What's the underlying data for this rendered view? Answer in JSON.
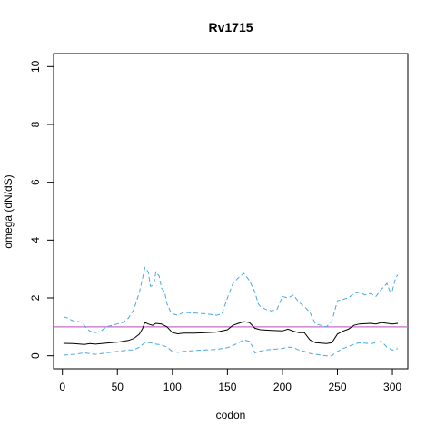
{
  "chart_data": {
    "type": "line",
    "title": "Rv1715",
    "xlabel": "codon",
    "ylabel": "omega (dN/dS)",
    "xlim": [
      -8,
      314
    ],
    "ylim": [
      -0.45,
      10.45
    ],
    "x_ticks": [
      0,
      50,
      100,
      150,
      200,
      250,
      300
    ],
    "y_ticks": [
      0,
      2,
      4,
      6,
      8,
      10
    ],
    "reference_line": {
      "y": 1,
      "color": "#c86ec8"
    },
    "grid": false,
    "series": [
      {
        "role": "estimate",
        "color": "#000000",
        "style": "solid",
        "points": [
          [
            1,
            0.43
          ],
          [
            10,
            0.42
          ],
          [
            20,
            0.39
          ],
          [
            25,
            0.42
          ],
          [
            30,
            0.4
          ],
          [
            40,
            0.44
          ],
          [
            50,
            0.47
          ],
          [
            60,
            0.53
          ],
          [
            65,
            0.6
          ],
          [
            70,
            0.75
          ],
          [
            73,
            0.95
          ],
          [
            75,
            1.15
          ],
          [
            78,
            1.1
          ],
          [
            82,
            1.05
          ],
          [
            85,
            1.12
          ],
          [
            90,
            1.1
          ],
          [
            95,
            1.0
          ],
          [
            100,
            0.8
          ],
          [
            105,
            0.76
          ],
          [
            110,
            0.78
          ],
          [
            120,
            0.78
          ],
          [
            130,
            0.8
          ],
          [
            140,
            0.82
          ],
          [
            150,
            0.9
          ],
          [
            155,
            1.05
          ],
          [
            160,
            1.12
          ],
          [
            165,
            1.18
          ],
          [
            170,
            1.15
          ],
          [
            175,
            0.95
          ],
          [
            180,
            0.9
          ],
          [
            190,
            0.88
          ],
          [
            200,
            0.86
          ],
          [
            205,
            0.92
          ],
          [
            210,
            0.85
          ],
          [
            215,
            0.8
          ],
          [
            220,
            0.8
          ],
          [
            225,
            0.55
          ],
          [
            230,
            0.45
          ],
          [
            240,
            0.42
          ],
          [
            245,
            0.45
          ],
          [
            250,
            0.75
          ],
          [
            255,
            0.85
          ],
          [
            260,
            0.92
          ],
          [
            265,
            1.05
          ],
          [
            270,
            1.1
          ],
          [
            280,
            1.12
          ],
          [
            285,
            1.1
          ],
          [
            290,
            1.15
          ],
          [
            300,
            1.1
          ],
          [
            305,
            1.12
          ]
        ]
      },
      {
        "role": "upper",
        "color": "#4aa8e0",
        "style": "dashed",
        "points": [
          [
            1,
            1.35
          ],
          [
            5,
            1.3
          ],
          [
            10,
            1.2
          ],
          [
            15,
            1.18
          ],
          [
            18,
            1.15
          ],
          [
            20,
            1.05
          ],
          [
            22,
            0.95
          ],
          [
            25,
            0.85
          ],
          [
            30,
            0.8
          ],
          [
            35,
            0.85
          ],
          [
            40,
            1.0
          ],
          [
            45,
            1.05
          ],
          [
            50,
            1.1
          ],
          [
            55,
            1.15
          ],
          [
            60,
            1.3
          ],
          [
            65,
            1.6
          ],
          [
            70,
            2.2
          ],
          [
            73,
            2.7
          ],
          [
            75,
            3.05
          ],
          [
            78,
            2.9
          ],
          [
            80,
            2.4
          ],
          [
            83,
            2.45
          ],
          [
            85,
            2.9
          ],
          [
            88,
            2.75
          ],
          [
            90,
            2.35
          ],
          [
            93,
            2.2
          ],
          [
            95,
            1.8
          ],
          [
            98,
            1.55
          ],
          [
            100,
            1.45
          ],
          [
            105,
            1.4
          ],
          [
            110,
            1.5
          ],
          [
            120,
            1.48
          ],
          [
            130,
            1.45
          ],
          [
            140,
            1.4
          ],
          [
            145,
            1.45
          ],
          [
            150,
            2.0
          ],
          [
            155,
            2.5
          ],
          [
            160,
            2.7
          ],
          [
            165,
            2.85
          ],
          [
            170,
            2.6
          ],
          [
            175,
            2.2
          ],
          [
            178,
            1.8
          ],
          [
            180,
            1.7
          ],
          [
            185,
            1.6
          ],
          [
            190,
            1.55
          ],
          [
            195,
            1.6
          ],
          [
            200,
            2.05
          ],
          [
            205,
            2.0
          ],
          [
            210,
            2.1
          ],
          [
            215,
            1.85
          ],
          [
            220,
            1.7
          ],
          [
            225,
            1.5
          ],
          [
            230,
            1.1
          ],
          [
            235,
            1.05
          ],
          [
            240,
            1.0
          ],
          [
            245,
            1.2
          ],
          [
            250,
            1.9
          ],
          [
            255,
            1.95
          ],
          [
            260,
            2.0
          ],
          [
            265,
            2.15
          ],
          [
            270,
            2.2
          ],
          [
            275,
            2.1
          ],
          [
            280,
            2.15
          ],
          [
            285,
            2.05
          ],
          [
            290,
            2.3
          ],
          [
            295,
            2.5
          ],
          [
            298,
            2.2
          ],
          [
            300,
            2.25
          ],
          [
            303,
            2.7
          ],
          [
            305,
            2.8
          ]
        ]
      },
      {
        "role": "lower",
        "color": "#4aa8e0",
        "style": "dashed",
        "points": [
          [
            1,
            0.02
          ],
          [
            10,
            0.05
          ],
          [
            20,
            0.1
          ],
          [
            30,
            0.05
          ],
          [
            40,
            0.1
          ],
          [
            50,
            0.15
          ],
          [
            60,
            0.2
          ],
          [
            65,
            0.2
          ],
          [
            70,
            0.3
          ],
          [
            75,
            0.45
          ],
          [
            80,
            0.45
          ],
          [
            85,
            0.4
          ],
          [
            90,
            0.38
          ],
          [
            95,
            0.3
          ],
          [
            100,
            0.15
          ],
          [
            105,
            0.12
          ],
          [
            110,
            0.15
          ],
          [
            120,
            0.18
          ],
          [
            130,
            0.2
          ],
          [
            140,
            0.22
          ],
          [
            150,
            0.28
          ],
          [
            155,
            0.35
          ],
          [
            160,
            0.45
          ],
          [
            165,
            0.55
          ],
          [
            170,
            0.5
          ],
          [
            173,
            0.3
          ],
          [
            175,
            0.1
          ],
          [
            178,
            0.15
          ],
          [
            185,
            0.2
          ],
          [
            190,
            0.22
          ],
          [
            200,
            0.25
          ],
          [
            205,
            0.3
          ],
          [
            210,
            0.28
          ],
          [
            215,
            0.2
          ],
          [
            220,
            0.15
          ],
          [
            225,
            0.08
          ],
          [
            230,
            0.05
          ],
          [
            240,
            0.0
          ],
          [
            245,
            0.0
          ],
          [
            248,
            0.1
          ],
          [
            250,
            0.15
          ],
          [
            255,
            0.25
          ],
          [
            260,
            0.32
          ],
          [
            265,
            0.4
          ],
          [
            270,
            0.45
          ],
          [
            280,
            0.42
          ],
          [
            285,
            0.45
          ],
          [
            290,
            0.5
          ],
          [
            295,
            0.3
          ],
          [
            300,
            0.2
          ],
          [
            305,
            0.25
          ]
        ]
      }
    ]
  }
}
